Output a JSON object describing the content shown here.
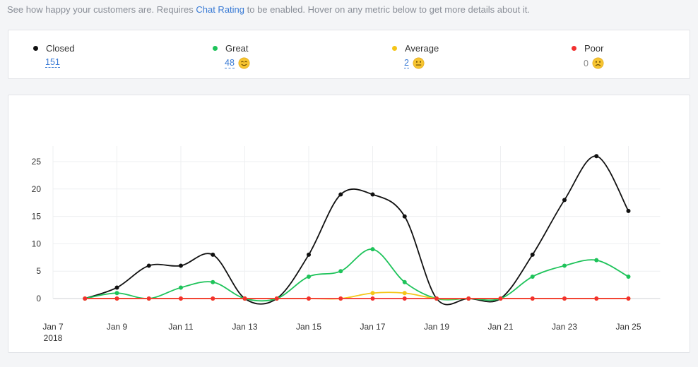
{
  "intro": {
    "text_before": "See how happy your customers are. Requires ",
    "link": "Chat Rating",
    "text_after": " to be enabled. Hover on any metric below to get more details about it."
  },
  "metrics": [
    {
      "label": "Closed",
      "value": "151",
      "color": "#111111",
      "emoji": ""
    },
    {
      "label": "Great",
      "value": "48",
      "color": "#1ec35a",
      "emoji": "smile-emoji-icon"
    },
    {
      "label": "Average",
      "value": "2",
      "color": "#f5c518",
      "emoji": "neutral-emoji-icon"
    },
    {
      "label": "Poor",
      "value": "0",
      "color": "#f2302f",
      "emoji": "sad-emoji-icon"
    }
  ],
  "chart_data": {
    "type": "line",
    "x": [
      "Jan 7",
      "Jan 8",
      "Jan 9",
      "Jan 10",
      "Jan 11",
      "Jan 12",
      "Jan 13",
      "Jan 14",
      "Jan 15",
      "Jan 16",
      "Jan 17",
      "Jan 18",
      "Jan 19",
      "Jan 20",
      "Jan 21",
      "Jan 22",
      "Jan 23",
      "Jan 24",
      "Jan 25"
    ],
    "tick_labels": [
      {
        "label": "Jan 7",
        "sub": "2018"
      },
      {
        "label": "Jan 9",
        "sub": ""
      },
      {
        "label": "Jan 11",
        "sub": ""
      },
      {
        "label": "Jan 13",
        "sub": ""
      },
      {
        "label": "Jan 15",
        "sub": ""
      },
      {
        "label": "Jan 17",
        "sub": ""
      },
      {
        "label": "Jan 19",
        "sub": ""
      },
      {
        "label": "Jan 21",
        "sub": ""
      },
      {
        "label": "Jan 23",
        "sub": ""
      },
      {
        "label": "Jan 25",
        "sub": ""
      }
    ],
    "y_ticks": [
      "0",
      "5",
      "10",
      "15",
      "20",
      "25"
    ],
    "ylim": [
      0,
      28
    ],
    "grid": true,
    "series": [
      {
        "color": "#111111",
        "values": [
          null,
          0,
          2,
          6,
          6,
          8,
          0,
          0,
          8,
          19,
          19,
          15,
          0,
          0,
          0,
          8,
          18,
          26,
          16
        ]
      },
      {
        "color": "#1ec35a",
        "values": [
          null,
          0,
          1,
          0,
          2,
          3,
          0,
          0,
          4,
          5,
          9,
          3,
          0,
          0,
          0,
          4,
          6,
          7,
          4
        ]
      },
      {
        "color": "#f5c518",
        "values": [
          null,
          0,
          0,
          0,
          0,
          0,
          0,
          0,
          0,
          0,
          1,
          1,
          0,
          0,
          0,
          0,
          0,
          0,
          0
        ]
      },
      {
        "color": "#f2302f",
        "values": [
          null,
          0,
          0,
          0,
          0,
          0,
          0,
          0,
          0,
          0,
          0,
          0,
          0,
          0,
          0,
          0,
          0,
          0,
          0
        ]
      }
    ]
  }
}
